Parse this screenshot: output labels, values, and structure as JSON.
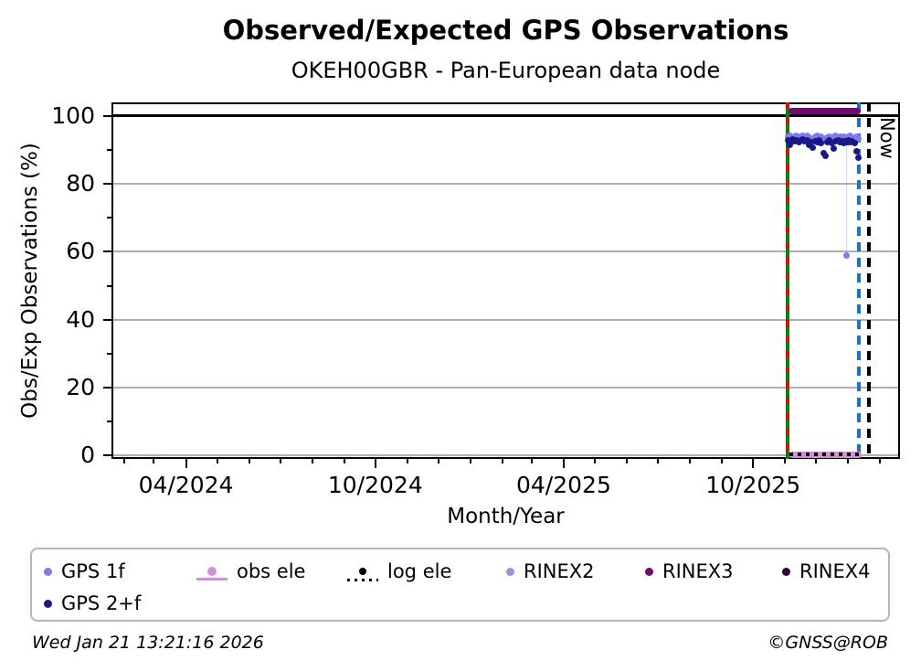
{
  "title": "Observed/Expected GPS Observations",
  "subtitle": "OKEH00GBR - Pan-European data node",
  "footer": {
    "timestamp": "Wed Jan 21 13:21:16 2026",
    "credit": "©GNSS@ROB"
  },
  "chart_data": {
    "type": "scatter",
    "title": "Observed/Expected GPS Observations",
    "subtitle": "OKEH00GBR - Pan-European data node",
    "xlabel": "Month/Year",
    "ylabel": "Obs/Exp Observations (%)",
    "x_range": [
      "2024-01-20",
      "2026-02-20"
    ],
    "y_range": [
      -1,
      104
    ],
    "grid": "horizontal-only",
    "grid_color": "#b0b0b0",
    "x_ticks_major": [
      {
        "date": "2024-04-01",
        "label": "04/2024"
      },
      {
        "date": "2024-10-01",
        "label": "10/2024"
      },
      {
        "date": "2025-04-01",
        "label": "04/2025"
      },
      {
        "date": "2025-10-01",
        "label": "10/2025"
      }
    ],
    "y_ticks_major": [
      0,
      20,
      40,
      60,
      80,
      100
    ],
    "y_ticks_minor": [
      10,
      30,
      50,
      70,
      90
    ],
    "reference_lines": [
      {
        "axis": "y",
        "value": 100,
        "color": "#000000"
      }
    ],
    "event_lines": [
      {
        "name": "data-start",
        "date": "2025-11-03",
        "style": "solid-with-red-dots",
        "colors": [
          "#0e7c0e",
          "#d01010"
        ]
      },
      {
        "name": "last-data",
        "date": "2026-01-11",
        "style": "dashed",
        "color": "#1c72c8"
      },
      {
        "name": "now",
        "date": "2026-01-21",
        "style": "dashed",
        "color": "#000000",
        "label": "Now"
      }
    ],
    "series": [
      {
        "name": "GPS 1f",
        "key": "gps1f",
        "color": "#7a7ded",
        "marker": "circle",
        "size": 7,
        "points": [
          [
            "2025-11-04",
            93.9
          ],
          [
            "2025-11-06",
            94.2
          ],
          [
            "2025-11-08",
            93.6
          ],
          [
            "2025-11-10",
            94.0
          ],
          [
            "2025-11-12",
            94.3
          ],
          [
            "2025-11-14",
            93.5
          ],
          [
            "2025-11-16",
            93.9
          ],
          [
            "2025-11-18",
            94.1
          ],
          [
            "2025-11-20",
            93.6
          ],
          [
            "2025-11-22",
            94.2
          ],
          [
            "2025-11-24",
            93.7
          ],
          [
            "2025-11-26",
            93.4
          ],
          [
            "2025-11-28",
            93.0
          ],
          [
            "2025-11-30",
            93.8
          ],
          [
            "2025-12-02",
            94.1
          ],
          [
            "2025-12-04",
            93.6
          ],
          [
            "2025-12-06",
            93.9
          ],
          [
            "2025-12-08",
            93.3
          ],
          [
            "2025-12-10",
            92.9
          ],
          [
            "2025-12-12",
            93.7
          ],
          [
            "2025-12-14",
            94.0
          ],
          [
            "2025-12-16",
            93.5
          ],
          [
            "2025-12-18",
            93.8
          ],
          [
            "2025-12-20",
            94.1
          ],
          [
            "2025-12-22",
            93.6
          ],
          [
            "2025-12-24",
            93.9
          ],
          [
            "2025-12-26",
            93.4
          ],
          [
            "2025-12-28",
            93.8
          ],
          [
            "2025-12-29",
            93.7
          ],
          [
            "2025-12-30",
            59.0
          ],
          [
            "2025-12-31",
            93.6
          ],
          [
            "2026-01-01",
            93.9
          ],
          [
            "2026-01-03",
            94.1
          ],
          [
            "2026-01-05",
            93.6
          ],
          [
            "2026-01-07",
            93.3
          ],
          [
            "2026-01-09",
            93.8
          ],
          [
            "2026-01-11",
            93.5
          ]
        ]
      },
      {
        "name": "GPS 2+f",
        "key": "gps2f",
        "color": "#191985",
        "marker": "circle",
        "size": 7,
        "points": [
          [
            "2025-11-04",
            92.8
          ],
          [
            "2025-11-06",
            91.4
          ],
          [
            "2025-11-08",
            93.0
          ],
          [
            "2025-11-10",
            92.6
          ],
          [
            "2025-11-12",
            92.9
          ],
          [
            "2025-11-14",
            92.4
          ],
          [
            "2025-11-16",
            92.7
          ],
          [
            "2025-11-18",
            93.0
          ],
          [
            "2025-11-20",
            92.5
          ],
          [
            "2025-11-22",
            92.8
          ],
          [
            "2025-11-24",
            91.6
          ],
          [
            "2025-11-26",
            92.3
          ],
          [
            "2025-11-28",
            90.8
          ],
          [
            "2025-11-30",
            92.6
          ],
          [
            "2025-12-02",
            92.4
          ],
          [
            "2025-12-04",
            92.8
          ],
          [
            "2025-12-06",
            91.9
          ],
          [
            "2025-12-08",
            89.0
          ],
          [
            "2025-12-10",
            88.2
          ],
          [
            "2025-12-12",
            92.2
          ],
          [
            "2025-12-14",
            92.7
          ],
          [
            "2025-12-16",
            92.0
          ],
          [
            "2025-12-18",
            90.3
          ],
          [
            "2025-12-20",
            92.5
          ],
          [
            "2025-12-22",
            92.8
          ],
          [
            "2025-12-24",
            92.3
          ],
          [
            "2025-12-26",
            92.6
          ],
          [
            "2025-12-28",
            92.1
          ],
          [
            "2025-12-29",
            92.5
          ],
          [
            "2025-12-31",
            92.3
          ],
          [
            "2026-01-01",
            92.7
          ],
          [
            "2026-01-03",
            92.2
          ],
          [
            "2026-01-05",
            92.5
          ],
          [
            "2026-01-07",
            92.0
          ],
          [
            "2026-01-09",
            89.5
          ],
          [
            "2026-01-11",
            87.8
          ]
        ]
      },
      {
        "name": "obs ele",
        "key": "obsele",
        "color": "#cf93d4",
        "style": "thick-line",
        "value": 0.3,
        "start": "2025-11-05",
        "end": "2026-01-14"
      },
      {
        "name": "log ele",
        "key": "logele",
        "color": "#000000",
        "style": "dotted-line",
        "value": 0.3,
        "start": "2025-11-05",
        "end": "2026-01-14"
      },
      {
        "name": "RINEX2",
        "key": "rinex2",
        "color": "#9a94d8",
        "points": []
      },
      {
        "name": "RINEX3",
        "key": "rinex3",
        "color": "#6b0f6f",
        "style": "thick-line",
        "value": 101.5,
        "start": "2025-11-04",
        "end": "2026-01-13"
      },
      {
        "name": "RINEX4",
        "key": "rinex4",
        "color": "#2a0a35",
        "points": []
      }
    ],
    "outlier_connector": {
      "date": "2025-12-30",
      "from": 93.5,
      "to": 59.0,
      "color": "rgba(122,125,237,0.35)"
    }
  },
  "legend": {
    "items": [
      {
        "label": "GPS 1f",
        "marker": "dot",
        "color": "#7a7ded"
      },
      {
        "label": "obs ele",
        "marker": "line-dot",
        "color": "#cf93d4"
      },
      {
        "label": "log ele",
        "marker": "dotted-line-dot",
        "color": "#000000"
      },
      {
        "label": "RINEX2",
        "marker": "dot",
        "color": "#9a94d8"
      },
      {
        "label": "RINEX3",
        "marker": "dot",
        "color": "#6b0f6f"
      },
      {
        "label": "RINEX4",
        "marker": "dot",
        "color": "#2a0a35"
      },
      {
        "label": "GPS 2+f",
        "marker": "dot",
        "color": "#191985"
      }
    ]
  }
}
